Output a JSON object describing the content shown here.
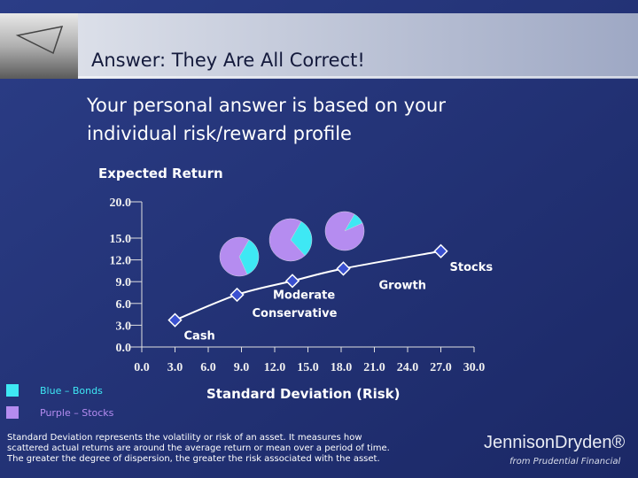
{
  "header": {
    "title": "Answer:  They Are All Correct!"
  },
  "subtitle": [
    "Your personal answer is based on your",
    "individual risk/reward profile"
  ],
  "chart_data": {
    "type": "scatter",
    "y_label": "Expected Return",
    "x_label": "Standard Deviation (Risk)",
    "categories": [
      "Cash",
      "Conservative",
      "Moderate",
      "Growth",
      "Stocks"
    ],
    "x": [
      3.0,
      8.6,
      13.6,
      18.2,
      27.0
    ],
    "values": [
      3.7,
      7.2,
      9.1,
      10.8,
      13.2
    ],
    "color": "#3a50d0",
    "xlim": [
      0,
      30
    ],
    "ylim": [
      0,
      20
    ],
    "xticks": [
      {
        "value": 0,
        "label": "0.0"
      },
      {
        "value": 3,
        "label": "3.0"
      },
      {
        "value": 6,
        "label": "6.0"
      },
      {
        "value": 9,
        "label": "9.0"
      },
      {
        "value": 12,
        "label": "12.0"
      },
      {
        "value": 15,
        "label": "15.0"
      },
      {
        "value": 18,
        "label": "18.0"
      },
      {
        "value": 21,
        "label": "21.0"
      },
      {
        "value": 24,
        "label": "24.0"
      },
      {
        "value": 27,
        "label": "27.0"
      },
      {
        "value": 30,
        "label": "30.0"
      }
    ],
    "yticks": [
      {
        "value": 0,
        "label": "0.0"
      },
      {
        "value": 3,
        "label": "3.0"
      },
      {
        "value": 6,
        "label": "6.0"
      },
      {
        "value": 9,
        "label": "9.0"
      },
      {
        "value": 12,
        "label": "12.0"
      },
      {
        "value": 15,
        "label": "15.0"
      },
      {
        "value": 20,
        "label": "20.0"
      }
    ],
    "legend": [
      {
        "label": "Blue – Bonds",
        "color": "#3ee8f4"
      },
      {
        "label": "Purple – Stocks",
        "color": "#b58cf0"
      }
    ],
    "pies": [
      {
        "values": [
          35,
          65
        ]
      },
      {
        "values": [
          30,
          70
        ]
      },
      {
        "values": [
          10,
          90
        ]
      }
    ]
  },
  "footnote": [
    "Standard Deviation represents the volatility or risk of an asset.  It measures how",
    "scattered actual returns are around the average return or mean over a period of time.",
    "The greater the degree of dispersion, the greater the risk associated with the asset."
  ],
  "logo": {
    "name": "JennisonDryden®",
    "tagline": "from Prudential Financial"
  }
}
